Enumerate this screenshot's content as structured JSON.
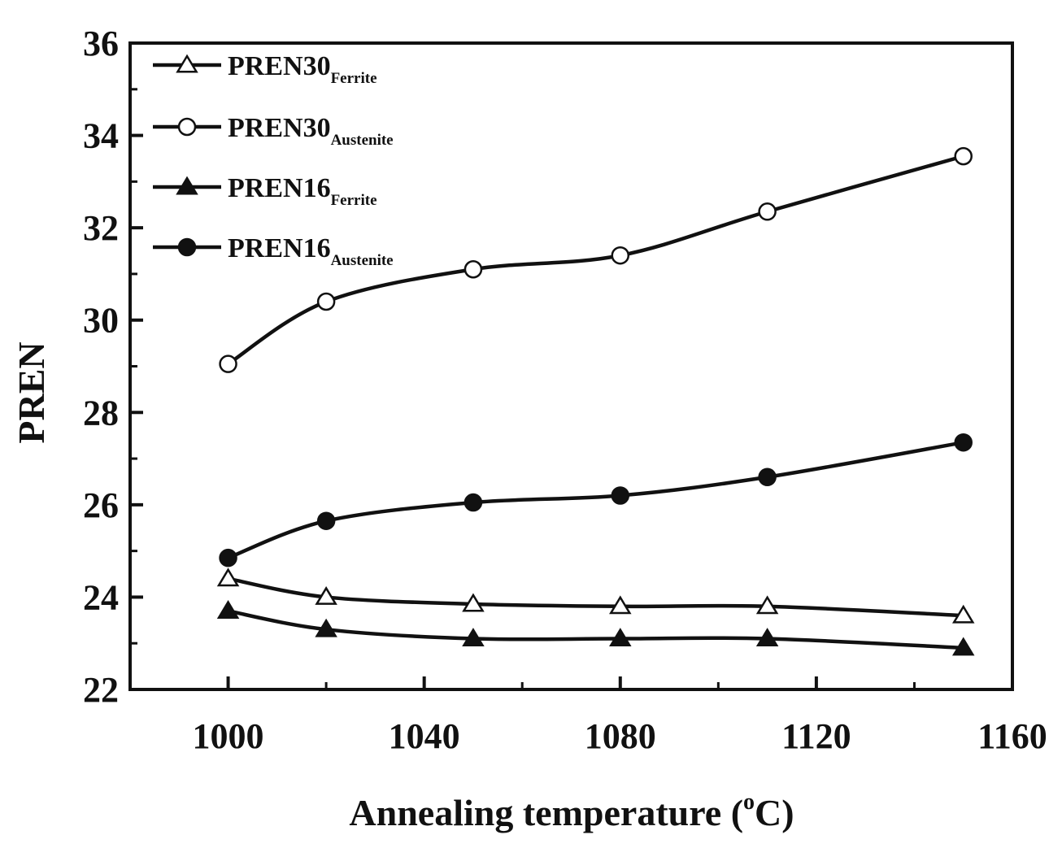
{
  "chart_data": {
    "type": "line",
    "xlabel": "Annealing temperature (",
    "xlabel_sup": "o",
    "xlabel_tail": "C)",
    "ylabel": "PREN",
    "xlim": [
      980,
      1160
    ],
    "ylim": [
      22,
      36
    ],
    "xticks": [
      1000,
      1040,
      1080,
      1120,
      1160
    ],
    "yticks": [
      22,
      24,
      26,
      28,
      30,
      32,
      34,
      36
    ],
    "legend_position": "top-left",
    "grid": false,
    "x": [
      1000,
      1020,
      1050,
      1080,
      1110,
      1150
    ],
    "series": [
      {
        "name": "PREN",
        "number": "30",
        "subscript": "Ferrite",
        "marker": "open-triangle",
        "values": [
          24.4,
          24.0,
          23.85,
          23.8,
          23.8,
          23.6
        ]
      },
      {
        "name": "PREN",
        "number": "30",
        "subscript": "Austenite",
        "marker": "open-circle",
        "values": [
          29.05,
          30.4,
          31.1,
          31.4,
          32.35,
          33.55
        ]
      },
      {
        "name": "PREN",
        "number": "16",
        "subscript": "Ferrite",
        "marker": "filled-triangle",
        "values": [
          23.7,
          23.3,
          23.1,
          23.1,
          23.1,
          22.9
        ]
      },
      {
        "name": "PREN",
        "number": "16",
        "subscript": "Austenite",
        "marker": "filled-circle",
        "values": [
          24.85,
          25.65,
          26.05,
          26.2,
          26.6,
          27.35
        ]
      }
    ]
  }
}
